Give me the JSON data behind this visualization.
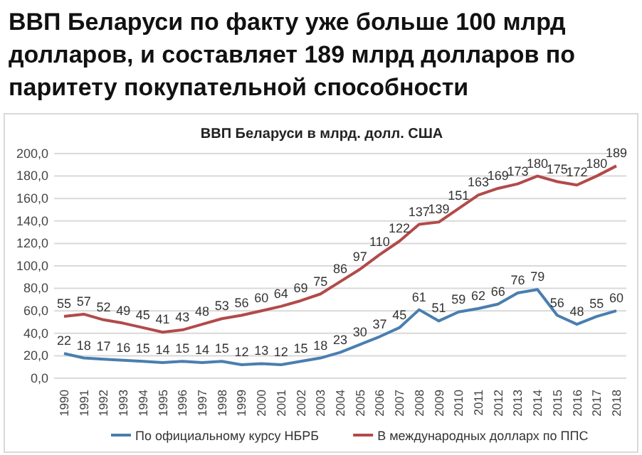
{
  "chart_data": {
    "type": "line",
    "title": "ВВП Беларуси по факту уже больше 100 млрд долларов, и составляет 189 млрд долларов по паритету покупательной способности",
    "subtitle": "ВВП Беларуси в млрд. долл. США",
    "categories": [
      "1990",
      "1991",
      "1992",
      "1993",
      "1994",
      "1995",
      "1996",
      "1997",
      "1998",
      "1999",
      "2000",
      "2001",
      "2002",
      "2003",
      "2004",
      "2005",
      "2006",
      "2007",
      "2008",
      "2009",
      "2010",
      "2011",
      "2012",
      "2013",
      "2014",
      "2015",
      "2016",
      "2017",
      "2018"
    ],
    "series": [
      {
        "name": "По официальному курсу НБРБ",
        "color": "#4a7eb0",
        "values": [
          22,
          18,
          17,
          16,
          15,
          14,
          15,
          14,
          15,
          12,
          13,
          12,
          15,
          18,
          23,
          30,
          37,
          45,
          61,
          51,
          59,
          62,
          66,
          76,
          79,
          56,
          48,
          55,
          60
        ]
      },
      {
        "name": "В международных долларх по ППС",
        "color": "#b24a4a",
        "values": [
          55,
          57,
          52,
          49,
          45,
          41,
          43,
          48,
          53,
          56,
          60,
          64,
          69,
          75,
          86,
          97,
          110,
          122,
          137,
          139,
          151,
          163,
          169,
          173,
          180,
          175,
          172,
          180,
          189
        ]
      }
    ],
    "ylim": [
      0,
      200
    ],
    "yticks": [
      {
        "value": 0,
        "label": "0,0"
      },
      {
        "value": 20,
        "label": "20,0"
      },
      {
        "value": 40,
        "label": "40,0"
      },
      {
        "value": 60,
        "label": "60,0"
      },
      {
        "value": 80,
        "label": "80,0"
      },
      {
        "value": 100,
        "label": "100,0"
      },
      {
        "value": 120,
        "label": "120,0"
      },
      {
        "value": 140,
        "label": "140,0"
      },
      {
        "value": 160,
        "label": "160,0"
      },
      {
        "value": 180,
        "label": "180,0"
      },
      {
        "value": 200,
        "label": "200,0"
      }
    ],
    "grid": "y",
    "legend": "bottom",
    "data_labels": true,
    "marker": "none",
    "line_style": "solid"
  }
}
